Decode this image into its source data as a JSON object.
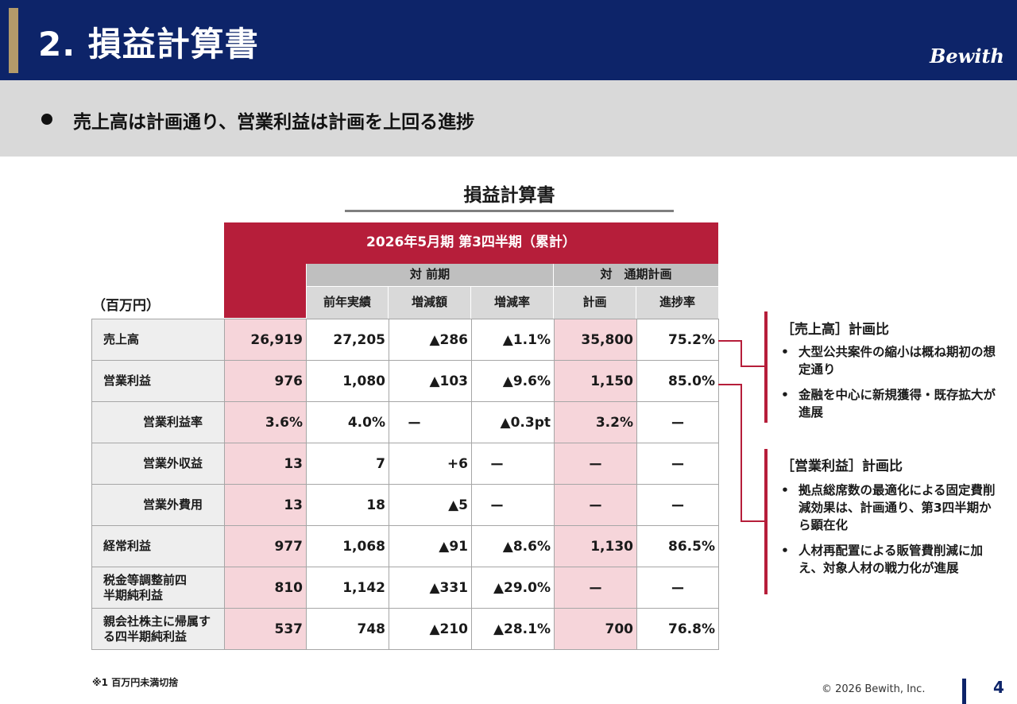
{
  "header": {
    "title": "2. 損益計算書",
    "logo": "Bewith"
  },
  "summary": {
    "text": "売上高は計画通り、営業利益は計画を上回る進捗"
  },
  "section_title": "損益計算書",
  "unit_label": "（百万円）",
  "table": {
    "period": "2026年5月期 第3四半期（累計）",
    "group_prev": "対 前期",
    "group_plan": "対　通期計画",
    "subheaders": [
      "前年実績",
      "増減額",
      "増減率",
      "計画",
      "進捗率"
    ],
    "rows": [
      {
        "label": "売上高",
        "cells": [
          "26,919",
          "27,205",
          "▲286",
          "▲1.1%",
          "35,800",
          "75.2%"
        ]
      },
      {
        "label": "営業利益",
        "cells": [
          "976",
          "1,080",
          "▲103",
          "▲9.6%",
          "1,150",
          "85.0%"
        ]
      },
      {
        "label": "営業利益率",
        "cells": [
          "3.6%",
          "4.0%",
          "ー",
          "▲0.3pt",
          "3.2%",
          "ー"
        ]
      },
      {
        "label": "営業外収益",
        "cells": [
          "13",
          "7",
          "+6",
          "ー",
          "ー",
          "ー"
        ]
      },
      {
        "label": "営業外費用",
        "cells": [
          "13",
          "18",
          "▲5",
          "ー",
          "ー",
          "ー"
        ]
      },
      {
        "label": "経常利益",
        "cells": [
          "977",
          "1,068",
          "▲91",
          "▲8.6%",
          "1,130",
          "86.5%"
        ]
      },
      {
        "label": "税金等調整前四半期純利益",
        "cells": [
          "810",
          "1,142",
          "▲331",
          "▲29.0%",
          "ー",
          "ー"
        ]
      },
      {
        "label": "親会社株主に帰属する四半期純利益",
        "cells": [
          "537",
          "748",
          "▲210",
          "▲28.1%",
          "700",
          "76.8%"
        ]
      }
    ]
  },
  "notes": [
    {
      "title": "［売上高］計画比",
      "items": [
        "大型公共案件の縮小は概ね期初の想定通り",
        "金融を中心に新規獲得・既存拡大が進展"
      ]
    },
    {
      "title": "［営業利益］計画比",
      "items": [
        "拠点総席数の最適化による固定費削減効果は、計画通り、第3四半期から顕在化",
        "人材再配置による販管費削減に加え、対象人材の戦力化が進展"
      ]
    }
  ],
  "footnote": "※1 百万円未満切捨",
  "copyright": "© 2026 Bewith, Inc.",
  "page_number": "4",
  "colors": {
    "navy": "#0d2469",
    "gold": "#b39a6a",
    "crimson": "#b61e3a",
    "pink": "#f6d5da"
  }
}
